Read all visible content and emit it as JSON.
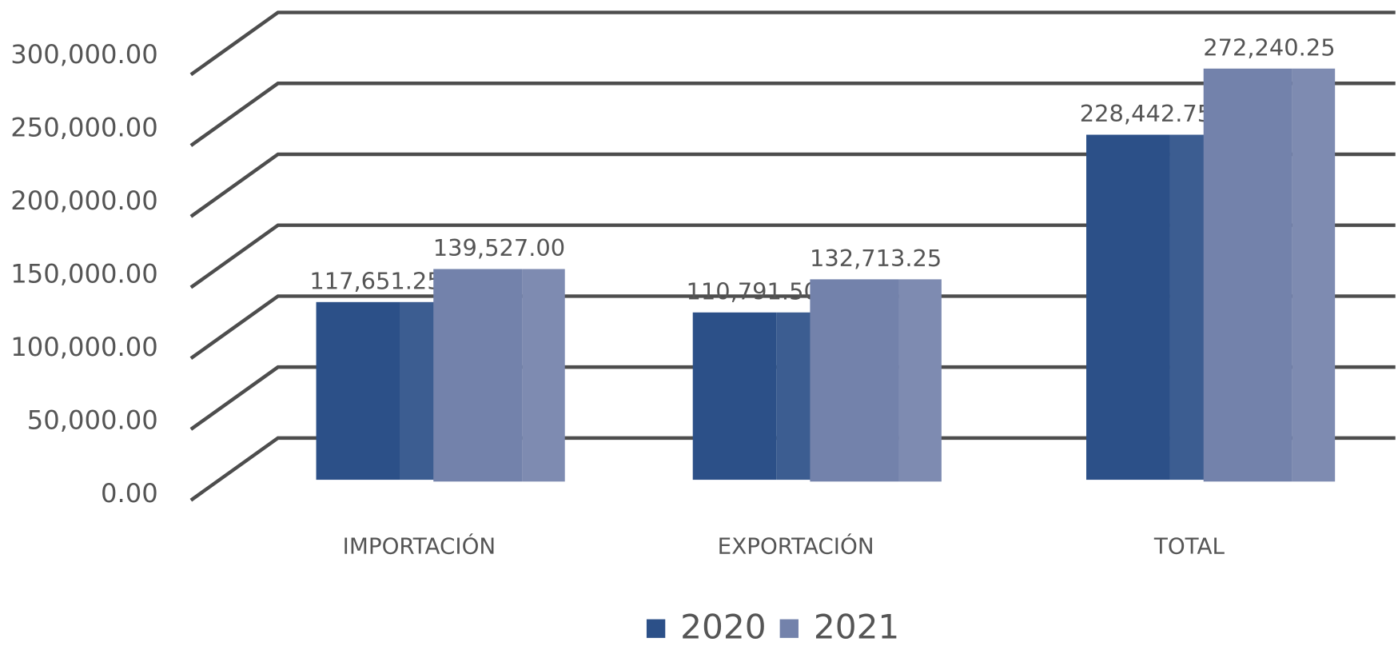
{
  "chart_data": {
    "type": "bar3d",
    "categories": [
      "IMPORTACIÓN",
      "EXPORTACIÓN",
      "TOTAL"
    ],
    "series": [
      {
        "name": "2020",
        "color": "#2c5088",
        "values": [
          117651.25,
          110791.5,
          228442.75
        ],
        "value_labels": [
          "117,651.25",
          "110,791.50",
          "228,442.75"
        ]
      },
      {
        "name": "2021",
        "color": "#7382ab",
        "values": [
          139527.0,
          132713.25,
          272240.25
        ],
        "value_labels": [
          "139,527.00",
          "132,713.25",
          "272,240.25"
        ]
      }
    ],
    "ylim": [
      0,
      300000
    ],
    "yticks": [
      {
        "value": 0,
        "label": "0.00"
      },
      {
        "value": 50000,
        "label": "50,000.00"
      },
      {
        "value": 100000,
        "label": "100,000.00"
      },
      {
        "value": 150000,
        "label": "150,000.00"
      },
      {
        "value": 200000,
        "label": "200,000.00"
      },
      {
        "value": 250000,
        "label": "250,000.00"
      },
      {
        "value": 300000,
        "label": "300,000.00"
      }
    ],
    "grid": true,
    "legend": "bottom"
  }
}
